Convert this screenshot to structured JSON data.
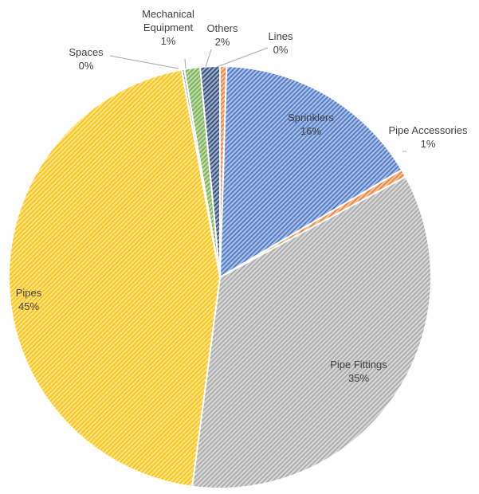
{
  "chart_data": {
    "type": "pie",
    "title": "",
    "slices": [
      {
        "name": "Lines",
        "percent_label": "0%",
        "value": 0.5,
        "color": "#ED7D31"
      },
      {
        "name": "Sprinklers",
        "percent_label": "16%",
        "value": 16,
        "color": "#4472C4"
      },
      {
        "name": "Pipe Accessories",
        "percent_label": "1%",
        "value": 0.6,
        "color": "#ED7D31"
      },
      {
        "name": "Pipe Fittings",
        "percent_label": "35%",
        "value": 35,
        "color": "#A5A5A5"
      },
      {
        "name": "Pipes",
        "percent_label": "45%",
        "value": 45,
        "color": "#FFC000"
      },
      {
        "name": "Spaces",
        "percent_label": "0%",
        "value": 0.2,
        "color": "#5B9BD5"
      },
      {
        "name": "Mechanical Equipment",
        "percent_label": "1%",
        "value": 1.2,
        "color": "#70AD47"
      },
      {
        "name": "Others",
        "percent_label": "2%",
        "value": 1.5,
        "color": "#264478"
      }
    ],
    "legend": "none",
    "fill_pattern": "diagonal-hatch"
  }
}
